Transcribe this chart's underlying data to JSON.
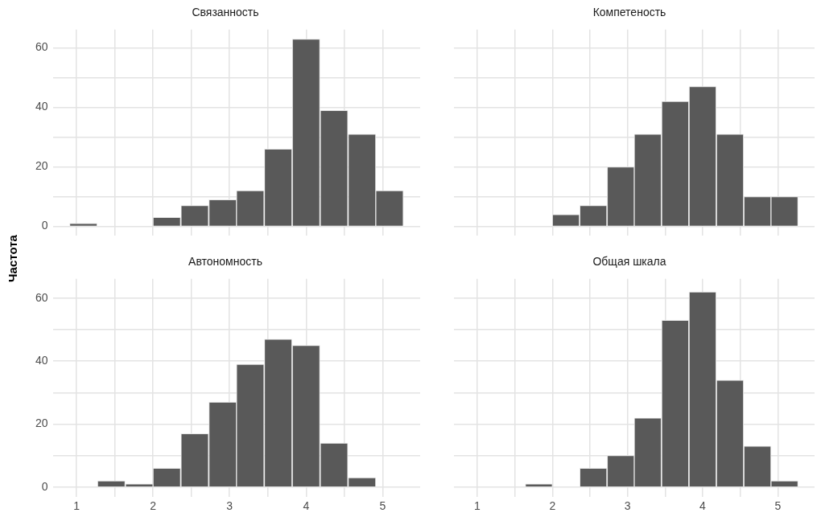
{
  "chart_data": [
    {
      "type": "histogram",
      "title": "Связанность",
      "ylabel": "Частота",
      "bins": [
        0.91,
        1.27,
        1.64,
        2,
        2.36,
        2.73,
        3.09,
        3.45,
        3.82,
        4.18,
        4.55,
        4.91,
        5.27
      ],
      "values": [
        1,
        0,
        0,
        3,
        7,
        9,
        12,
        26,
        63,
        39,
        31,
        12
      ],
      "color": "#595959",
      "xlim": [
        0.69,
        5.49
      ],
      "ylim": [
        -3.15,
        66.15
      ],
      "xticks": [
        {
          "value": 1,
          "label": null
        },
        {
          "value": 1.5,
          "label": null
        },
        {
          "value": 2,
          "label": null
        },
        {
          "value": 2.5,
          "label": null
        },
        {
          "value": 3,
          "label": null
        },
        {
          "value": 3.5,
          "label": null
        },
        {
          "value": 4,
          "label": null
        },
        {
          "value": 4.5,
          "label": null
        },
        {
          "value": 5,
          "label": null
        }
      ],
      "yticks": [
        0,
        {
          "value": 10,
          "label": null
        },
        20,
        {
          "value": 30,
          "label": null
        },
        40,
        {
          "value": 50,
          "label": null
        },
        60
      ],
      "grid": true,
      "tick_labels": "y"
    },
    {
      "type": "histogram",
      "title": "Компетеность",
      "bins": [
        0.91,
        1.27,
        1.64,
        2,
        2.36,
        2.73,
        3.09,
        3.45,
        3.82,
        4.18,
        4.55,
        4.91,
        5.27
      ],
      "values": [
        0,
        0,
        0,
        4,
        7,
        20,
        31,
        42,
        47,
        31,
        10,
        10
      ],
      "color": "#595959",
      "xlim": [
        0.69,
        5.49
      ],
      "ylim": [
        -3.15,
        66.15
      ],
      "xticks": [
        {
          "value": 1,
          "label": null
        },
        {
          "value": 1.5,
          "label": null
        },
        {
          "value": 2,
          "label": null
        },
        {
          "value": 2.5,
          "label": null
        },
        {
          "value": 3,
          "label": null
        },
        {
          "value": 3.5,
          "label": null
        },
        {
          "value": 4,
          "label": null
        },
        {
          "value": 4.5,
          "label": null
        },
        {
          "value": 5,
          "label": null
        }
      ],
      "yticks": [
        {
          "value": 0,
          "label": null
        },
        {
          "value": 10,
          "label": null
        },
        {
          "value": 20,
          "label": null
        },
        {
          "value": 30,
          "label": null
        },
        {
          "value": 40,
          "label": null
        },
        {
          "value": 50,
          "label": null
        },
        {
          "value": 60,
          "label": null
        }
      ],
      "grid": true,
      "tick_labels": false
    },
    {
      "type": "histogram",
      "title": "Автономность",
      "bins": [
        0.91,
        1.27,
        1.64,
        2,
        2.36,
        2.73,
        3.09,
        3.45,
        3.82,
        4.18,
        4.55,
        4.91,
        5.27
      ],
      "values": [
        0,
        2,
        1,
        6,
        17,
        27,
        39,
        47,
        45,
        14,
        3,
        0
      ],
      "color": "#595959",
      "xlim": [
        0.69,
        5.49
      ],
      "ylim": [
        -3.15,
        66.15
      ],
      "xticks": [
        1,
        {
          "value": 1.5,
          "label": null
        },
        2,
        {
          "value": 2.5,
          "label": null
        },
        3,
        {
          "value": 3.5,
          "label": null
        },
        4,
        {
          "value": 4.5,
          "label": null
        },
        5
      ],
      "yticks": [
        0,
        {
          "value": 10,
          "label": null
        },
        20,
        {
          "value": 30,
          "label": null
        },
        40,
        {
          "value": 50,
          "label": null
        },
        60
      ],
      "grid": true
    },
    {
      "type": "histogram",
      "title": "Общая шкала",
      "bins": [
        0.91,
        1.27,
        1.64,
        2,
        2.36,
        2.73,
        3.09,
        3.45,
        3.82,
        4.18,
        4.55,
        4.91,
        5.27
      ],
      "values": [
        0,
        0,
        1,
        0,
        6,
        10,
        22,
        53,
        62,
        34,
        13,
        2
      ],
      "color": "#595959",
      "xlim": [
        0.69,
        5.49
      ],
      "ylim": [
        -3.15,
        66.15
      ],
      "xticks": [
        1,
        {
          "value": 1.5,
          "label": null
        },
        2,
        {
          "value": 2.5,
          "label": null
        },
        3,
        {
          "value": 3.5,
          "label": null
        },
        4,
        {
          "value": 4.5,
          "label": null
        },
        5
      ],
      "yticks": [
        {
          "value": 0,
          "label": null
        },
        {
          "value": 10,
          "label": null
        },
        {
          "value": 20,
          "label": null
        },
        {
          "value": 30,
          "label": null
        },
        {
          "value": 40,
          "label": null
        },
        {
          "value": 50,
          "label": null
        },
        {
          "value": 60,
          "label": null
        }
      ],
      "grid": true,
      "tick_labels": "x"
    }
  ]
}
